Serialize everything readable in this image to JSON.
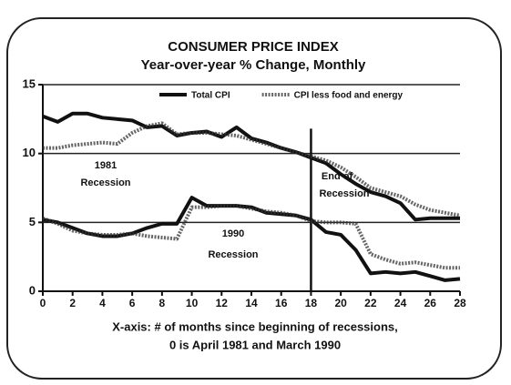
{
  "chart_data": {
    "type": "line",
    "title": "CONSUMER PRICE INDEX",
    "subtitle": "Year-over-year % Change, Monthly",
    "xlabel": [
      "X-axis: # of months since beginning of recessions,",
      "0 is April 1981 and March 1990"
    ],
    "x": [
      0,
      1,
      2,
      3,
      4,
      5,
      6,
      7,
      8,
      9,
      10,
      11,
      12,
      13,
      14,
      15,
      16,
      17,
      18,
      19,
      20,
      21,
      22,
      23,
      24,
      25,
      26,
      27,
      28
    ],
    "xlim": [
      0,
      28
    ],
    "xticks": [
      0,
      2,
      4,
      6,
      8,
      10,
      12,
      14,
      16,
      18,
      20,
      22,
      24,
      26,
      28
    ],
    "ylim": [
      0,
      15
    ],
    "yticks": [
      0,
      5,
      10,
      15
    ],
    "grid": true,
    "vline": 18,
    "annotations": [
      "1981",
      "Recession",
      "End of",
      "Recession",
      "1990",
      "Recession"
    ],
    "series": [
      {
        "name": "Total CPI",
        "color": "#111111",
        "style": "solid",
        "values": [
          12.7,
          12.3,
          12.9,
          12.9,
          12.6,
          12.5,
          12.4,
          11.9,
          12.0,
          11.3,
          11.5,
          11.6,
          11.2,
          11.9,
          11.1,
          10.8,
          10.4,
          10.1,
          9.7,
          9.3,
          8.5,
          7.8,
          7.2,
          6.9,
          6.4,
          5.2,
          5.3,
          5.3,
          5.3
        ]
      },
      {
        "name": "CPI less food and energy",
        "color": "#333333",
        "style": "dotted",
        "values": [
          10.4,
          10.4,
          10.6,
          10.7,
          10.8,
          10.7,
          11.5,
          12.0,
          12.2,
          11.4,
          11.5,
          11.5,
          11.4,
          11.3,
          11.0,
          10.7,
          10.4,
          10.1,
          9.8,
          9.5,
          9.0,
          8.3,
          7.5,
          7.2,
          6.9,
          6.3,
          5.9,
          5.7,
          5.5
        ]
      },
      {
        "name": "Total CPI",
        "color": "#111111",
        "style": "solid",
        "values": [
          5.2,
          5.0,
          4.6,
          4.2,
          4.0,
          4.0,
          4.2,
          4.6,
          4.9,
          4.9,
          6.8,
          6.2,
          6.2,
          6.2,
          6.1,
          5.7,
          5.6,
          5.5,
          5.2,
          4.3,
          4.1,
          3.0,
          1.3,
          1.4,
          1.3,
          1.4,
          1.1,
          0.8,
          0.9
        ]
      },
      {
        "name": "CPI less food and energy",
        "color": "#333333",
        "style": "dotted",
        "values": [
          5.3,
          4.9,
          4.4,
          4.2,
          4.1,
          4.1,
          4.2,
          4.0,
          3.9,
          3.8,
          6.1,
          6.1,
          6.2,
          6.2,
          6.0,
          5.8,
          5.7,
          5.5,
          5.1,
          5.0,
          5.0,
          4.9,
          2.7,
          2.3,
          2.0,
          2.1,
          1.9,
          1.7,
          1.7
        ]
      }
    ]
  }
}
